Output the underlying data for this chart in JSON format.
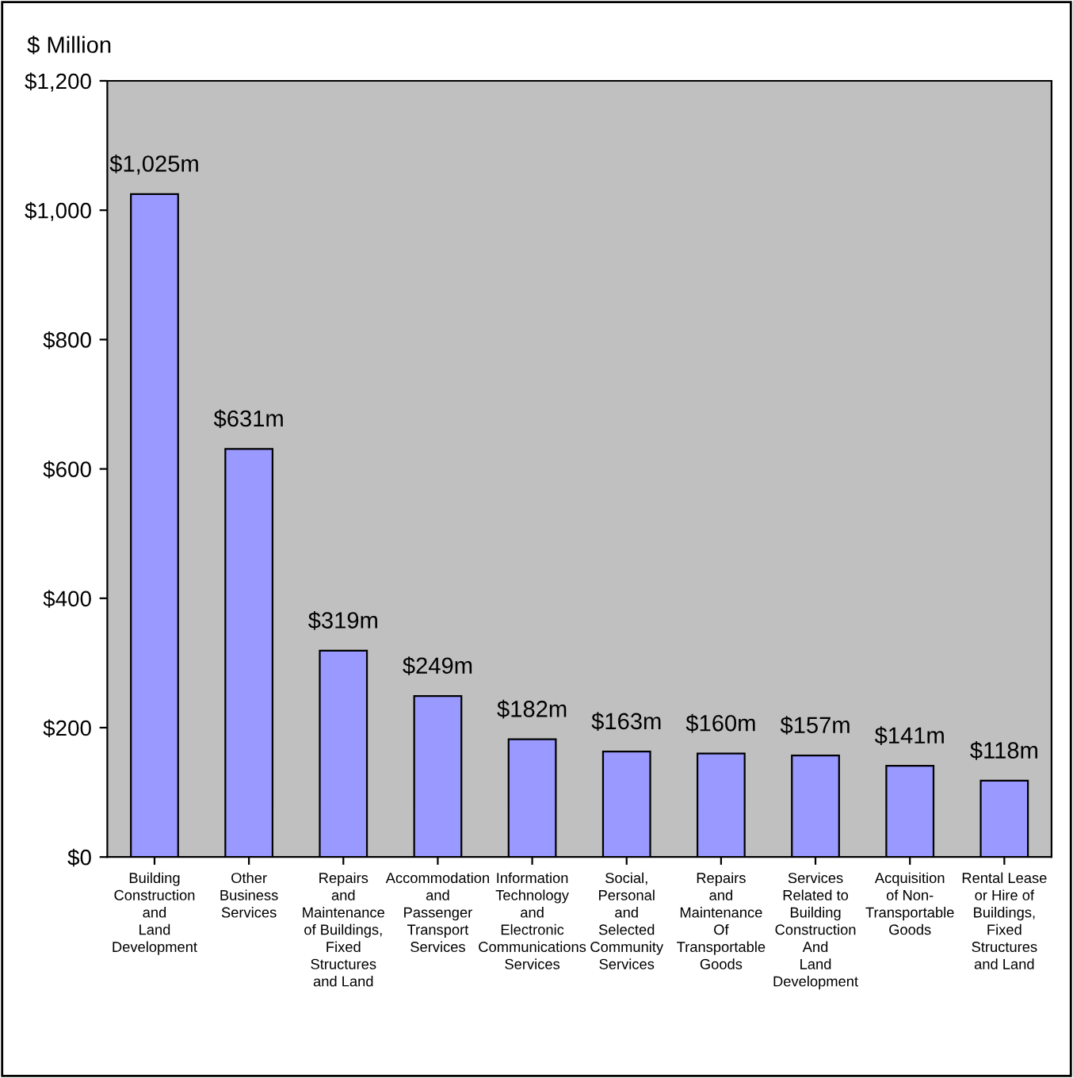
{
  "chart_data": {
    "type": "bar",
    "ylabel": "$ Million",
    "categories": [
      "Building\nConstruction\nand\nLand\nDevelopment",
      "Other\nBusiness\nServices",
      "Repairs\nand\nMaintenance\nof Buildings,\nFixed\nStructures\nand Land",
      "Accommodation\nand\nPassenger\nTransport\nServices",
      "Information\nTechnology\nand\nElectronic\nCommunications\nServices",
      "Social,\nPersonal\nand\nSelected\nCommunity\nServices",
      "Repairs\nand\nMaintenance\nOf\nTransportable\nGoods",
      "Services\nRelated to\nBuilding\nConstruction\nAnd\nLand\nDevelopment",
      "Acquisition\nof Non-\nTransportable\nGoods",
      "Rental Lease\nor Hire of\nBuildings,\nFixed\nStructures\nand Land"
    ],
    "values": [
      1025,
      631,
      319,
      249,
      182,
      163,
      160,
      157,
      141,
      118
    ],
    "value_labels": [
      "$1,025m",
      "$631m",
      "$319m",
      "$249m",
      "$182m",
      "$163m",
      "$160m",
      "$157m",
      "$141m",
      "$118m"
    ],
    "color": "#9999ff",
    "ylim": [
      0,
      1200
    ],
    "yticks": [
      {
        "value": 0,
        "label": "$0"
      },
      {
        "value": 200,
        "label": "$200"
      },
      {
        "value": 400,
        "label": "$400"
      },
      {
        "value": 600,
        "label": "$600"
      },
      {
        "value": 800,
        "label": "$800"
      },
      {
        "value": 1000,
        "label": "$1,000"
      },
      {
        "value": 1200,
        "label": "$1,200"
      }
    ],
    "grid": false,
    "legend": false
  }
}
